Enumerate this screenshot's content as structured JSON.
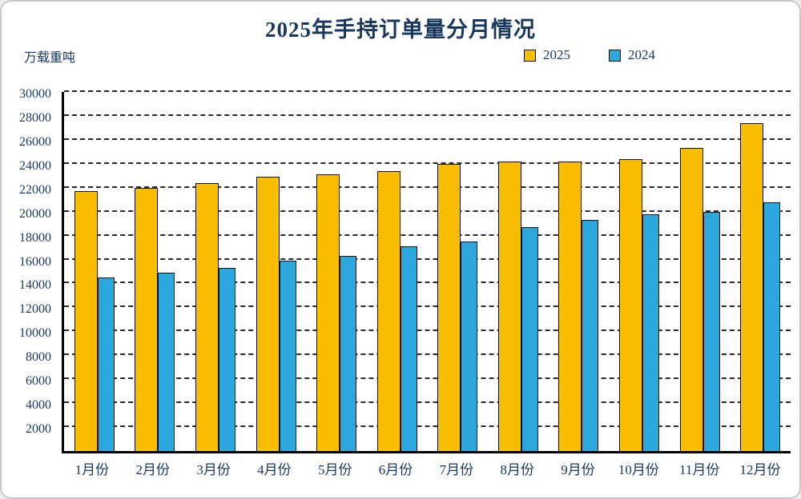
{
  "chart_data": {
    "type": "bar",
    "title": "2025年手持订单量分月情况",
    "ylabel": "万载重吨",
    "xlabel": "",
    "categories": [
      "1月份",
      "2月份",
      "3月份",
      "4月份",
      "5月份",
      "6月份",
      "7月份",
      "8月份",
      "9月份",
      "10月份",
      "11月份",
      "12月份"
    ],
    "series": [
      {
        "name": "2025",
        "color": "#FABE00",
        "values": [
          21700,
          22000,
          22400,
          22900,
          23100,
          23400,
          24000,
          24200,
          24200,
          24400,
          25300,
          27400
        ]
      },
      {
        "name": "2024",
        "color": "#2BA7DE",
        "values": [
          14500,
          14900,
          15300,
          15900,
          16300,
          17100,
          17500,
          18700,
          19300,
          19800,
          20000,
          20800
        ]
      }
    ],
    "ylim": [
      0,
      30000
    ],
    "ytick_step": 2000,
    "grid": "dashed-horizontal",
    "legend_position": "top-right"
  },
  "colors": {
    "text": "#17375E",
    "axis": "#000000",
    "grid": "#2a2a2a",
    "card_border": "#c9c9c9",
    "background": "#ffffff"
  }
}
